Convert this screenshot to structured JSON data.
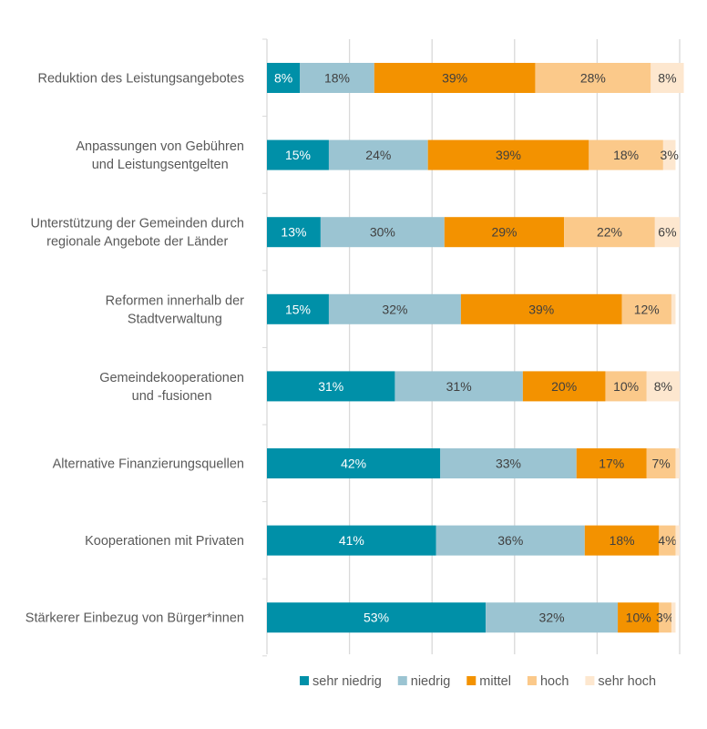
{
  "chart_data": {
    "type": "bar",
    "orientation": "horizontal",
    "stacked": true,
    "percent_stacked": true,
    "title": "",
    "xlabel": "",
    "ylabel": "",
    "xlim": [
      0,
      100
    ],
    "grid": true,
    "legend_position": "bottom",
    "categories": [
      [
        "Reduktion des Leistungsangebotes"
      ],
      [
        "Anpassungen von Gebühren",
        "und Leistungsentgelten"
      ],
      [
        "Unterstützung der Gemeinden durch",
        "regionale Angebote der Länder"
      ],
      [
        "Reformen innerhalb der",
        "Stadtverwaltung"
      ],
      [
        "Gemeindekooperationen",
        "und -fusionen"
      ],
      [
        "Alternative Finanzierungsquellen"
      ],
      [
        "Kooperationen mit Privaten"
      ],
      [
        "Stärkerer Einbezug von Bürger*innen"
      ]
    ],
    "series": [
      {
        "name": "sehr niedrig",
        "color": "#0090A8",
        "label_color": "#FFFFFF",
        "values": [
          8,
          15,
          13,
          15,
          31,
          42,
          41,
          53
        ],
        "labels": [
          "8%",
          "15%",
          "13%",
          "15%",
          "31%",
          "42%",
          "41%",
          "53%"
        ]
      },
      {
        "name": "niedrig",
        "color": "#9BC4D2",
        "label_color": "#404040",
        "values": [
          18,
          24,
          30,
          32,
          31,
          33,
          36,
          32
        ],
        "labels": [
          "18%",
          "24%",
          "30%",
          "32%",
          "31%",
          "33%",
          "36%",
          "32%"
        ]
      },
      {
        "name": "mittel",
        "color": "#F39200",
        "label_color": "#404040",
        "values": [
          39,
          39,
          29,
          39,
          20,
          17,
          18,
          10
        ],
        "labels": [
          "39%",
          "39%",
          "29%",
          "39%",
          "20%",
          "17%",
          "18%",
          "10%"
        ]
      },
      {
        "name": "hoch",
        "color": "#FBC98A",
        "label_color": "#404040",
        "values": [
          28,
          18,
          22,
          12,
          10,
          7,
          4,
          3
        ],
        "labels": [
          "28%",
          "18%",
          "22%",
          "12%",
          "10%",
          "7%",
          "4%",
          "3%"
        ]
      },
      {
        "name": "sehr hoch",
        "color": "#FDE7CF",
        "label_color": "#404040",
        "values": [
          8,
          3,
          6,
          1,
          8,
          1,
          1,
          1
        ],
        "labels": [
          "8%",
          "3%",
          "6%",
          "",
          "8%",
          "",
          "",
          ""
        ]
      }
    ]
  }
}
